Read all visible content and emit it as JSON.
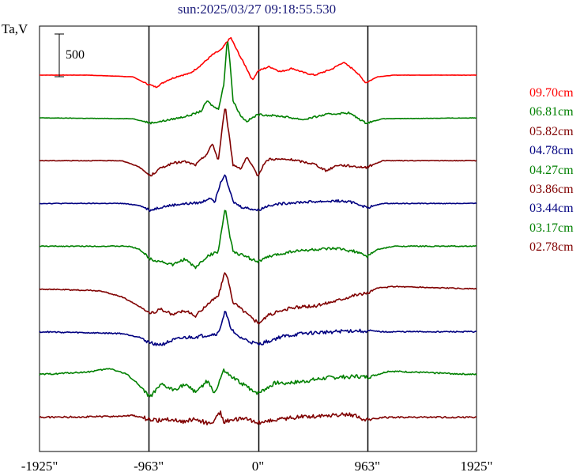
{
  "chart_data": {
    "type": "line",
    "title": "sun:2025/03/27 09:18:55.530",
    "ylabel": "Ta,V",
    "scale_bar_label": "500",
    "xlim": [
      -1925,
      1925
    ],
    "x_ticks": [
      {
        "value": -1925,
        "label": "-1925\""
      },
      {
        "value": -963,
        "label": "-963\""
      },
      {
        "value": 0,
        "label": "0\""
      },
      {
        "value": 963,
        "label": "963\""
      },
      {
        "value": 1925,
        "label": "1925\""
      }
    ],
    "vertical_lines": [
      -963,
      0,
      963
    ],
    "grid": false,
    "series": [
      {
        "name": "09.70cm",
        "color": "#ff0000",
        "baseline": 0,
        "points": [
          [
            -1925,
            0
          ],
          [
            -1500,
            0
          ],
          [
            -1100,
            -20
          ],
          [
            -1000,
            -90
          ],
          [
            -900,
            -140
          ],
          [
            -800,
            -60
          ],
          [
            -700,
            -10
          ],
          [
            -600,
            20
          ],
          [
            -500,
            120
          ],
          [
            -400,
            240
          ],
          [
            -320,
            300
          ],
          [
            -280,
            380
          ],
          [
            -240,
            440
          ],
          [
            -200,
            330
          ],
          [
            -150,
            200
          ],
          [
            -100,
            80
          ],
          [
            -50,
            -60
          ],
          [
            0,
            50
          ],
          [
            100,
            100
          ],
          [
            200,
            40
          ],
          [
            300,
            80
          ],
          [
            400,
            30
          ],
          [
            500,
            0
          ],
          [
            650,
            70
          ],
          [
            750,
            150
          ],
          [
            850,
            60
          ],
          [
            950,
            -90
          ],
          [
            1050,
            -20
          ],
          [
            1200,
            0
          ],
          [
            1925,
            0
          ]
        ]
      },
      {
        "name": "06.81cm",
        "color": "#008000",
        "baseline": 0,
        "points": [
          [
            -1925,
            0
          ],
          [
            -1100,
            -10
          ],
          [
            -950,
            -60
          ],
          [
            -850,
            -40
          ],
          [
            -700,
            0
          ],
          [
            -600,
            30
          ],
          [
            -500,
            80
          ],
          [
            -450,
            200
          ],
          [
            -400,
            140
          ],
          [
            -350,
            100
          ],
          [
            -300,
            400
          ],
          [
            -270,
            950
          ],
          [
            -250,
            700
          ],
          [
            -220,
            200
          ],
          [
            -150,
            20
          ],
          [
            -100,
            -40
          ],
          [
            0,
            40
          ],
          [
            200,
            20
          ],
          [
            400,
            -20
          ],
          [
            600,
            40
          ],
          [
            800,
            60
          ],
          [
            950,
            -60
          ],
          [
            1100,
            -10
          ],
          [
            1925,
            0
          ]
        ]
      },
      {
        "name": "05.82cm",
        "color": "#800000",
        "baseline": 0,
        "points": [
          [
            -1925,
            0
          ],
          [
            -1200,
            0
          ],
          [
            -1050,
            -70
          ],
          [
            -950,
            -180
          ],
          [
            -850,
            -80
          ],
          [
            -750,
            -30
          ],
          [
            -650,
            -10
          ],
          [
            -550,
            -50
          ],
          [
            -450,
            80
          ],
          [
            -400,
            200
          ],
          [
            -350,
            0
          ],
          [
            -290,
            650
          ],
          [
            -260,
            350
          ],
          [
            -220,
            -50
          ],
          [
            -150,
            -90
          ],
          [
            -100,
            40
          ],
          [
            0,
            -180
          ],
          [
            50,
            -40
          ],
          [
            100,
            20
          ],
          [
            300,
            10
          ],
          [
            500,
            -40
          ],
          [
            600,
            -120
          ],
          [
            700,
            -50
          ],
          [
            800,
            -60
          ],
          [
            950,
            -80
          ],
          [
            1100,
            0
          ],
          [
            1925,
            0
          ]
        ]
      },
      {
        "name": "04.78cm",
        "color": "#000080",
        "baseline": 0,
        "points": [
          [
            -1925,
            0
          ],
          [
            -1200,
            0
          ],
          [
            -1050,
            -20
          ],
          [
            -950,
            -80
          ],
          [
            -850,
            -40
          ],
          [
            -700,
            -10
          ],
          [
            -500,
            10
          ],
          [
            -420,
            70
          ],
          [
            -380,
            20
          ],
          [
            -330,
            250
          ],
          [
            -290,
            350
          ],
          [
            -260,
            200
          ],
          [
            -220,
            20
          ],
          [
            -150,
            -40
          ],
          [
            0,
            -80
          ],
          [
            100,
            -20
          ],
          [
            300,
            10
          ],
          [
            500,
            20
          ],
          [
            700,
            30
          ],
          [
            850,
            10
          ],
          [
            960,
            -50
          ],
          [
            1100,
            0
          ],
          [
            1925,
            0
          ]
        ]
      },
      {
        "name": "04.27cm",
        "color": "#008000",
        "baseline": 0,
        "points": [
          [
            -1925,
            0
          ],
          [
            -1150,
            0
          ],
          [
            -1050,
            -30
          ],
          [
            -950,
            -150
          ],
          [
            -850,
            -180
          ],
          [
            -750,
            -220
          ],
          [
            -650,
            -150
          ],
          [
            -550,
            -250
          ],
          [
            -450,
            -120
          ],
          [
            -350,
            -60
          ],
          [
            -290,
            450
          ],
          [
            -260,
            200
          ],
          [
            -220,
            -60
          ],
          [
            -150,
            -100
          ],
          [
            0,
            -180
          ],
          [
            100,
            -120
          ],
          [
            300,
            -60
          ],
          [
            500,
            -40
          ],
          [
            700,
            -30
          ],
          [
            850,
            -60
          ],
          [
            960,
            -120
          ],
          [
            1050,
            -40
          ],
          [
            1200,
            0
          ],
          [
            1925,
            0
          ]
        ]
      },
      {
        "name": "03.86cm",
        "color": "#800000",
        "baseline": 0,
        "points": [
          [
            -1925,
            0
          ],
          [
            -1400,
            -20
          ],
          [
            -1200,
            -90
          ],
          [
            -1050,
            -200
          ],
          [
            -950,
            -280
          ],
          [
            -850,
            -240
          ],
          [
            -750,
            -300
          ],
          [
            -650,
            -250
          ],
          [
            -550,
            -320
          ],
          [
            -450,
            -180
          ],
          [
            -350,
            -80
          ],
          [
            -290,
            200
          ],
          [
            -260,
            80
          ],
          [
            -220,
            -150
          ],
          [
            0,
            -400
          ],
          [
            100,
            -300
          ],
          [
            300,
            -220
          ],
          [
            500,
            -200
          ],
          [
            700,
            -130
          ],
          [
            850,
            -70
          ],
          [
            960,
            -50
          ],
          [
            1050,
            10
          ],
          [
            1200,
            30
          ],
          [
            1925,
            0
          ]
        ]
      },
      {
        "name": "03.44cm",
        "color": "#000080",
        "baseline": 0,
        "points": [
          [
            -1925,
            0
          ],
          [
            -1200,
            -20
          ],
          [
            -1050,
            -60
          ],
          [
            -950,
            -130
          ],
          [
            -850,
            -150
          ],
          [
            -750,
            -100
          ],
          [
            -650,
            -70
          ],
          [
            -550,
            -60
          ],
          [
            -450,
            -40
          ],
          [
            -350,
            -20
          ],
          [
            -290,
            240
          ],
          [
            -250,
            80
          ],
          [
            -200,
            -40
          ],
          [
            -100,
            -100
          ],
          [
            0,
            -150
          ],
          [
            200,
            -60
          ],
          [
            400,
            -20
          ],
          [
            600,
            -5
          ],
          [
            800,
            10
          ],
          [
            960,
            10
          ],
          [
            1100,
            0
          ],
          [
            1925,
            0
          ]
        ]
      },
      {
        "name": "03.17cm",
        "color": "#008000",
        "baseline": 0,
        "points": [
          [
            -1925,
            0
          ],
          [
            -1500,
            30
          ],
          [
            -1300,
            70
          ],
          [
            -1150,
            0
          ],
          [
            -1050,
            -120
          ],
          [
            -950,
            -260
          ],
          [
            -850,
            -120
          ],
          [
            -750,
            -180
          ],
          [
            -650,
            -120
          ],
          [
            -550,
            -200
          ],
          [
            -450,
            -80
          ],
          [
            -380,
            -220
          ],
          [
            -300,
            60
          ],
          [
            -250,
            -20
          ],
          [
            -150,
            -100
          ],
          [
            -50,
            -180
          ],
          [
            0,
            -220
          ],
          [
            150,
            -100
          ],
          [
            350,
            -90
          ],
          [
            600,
            -40
          ],
          [
            850,
            -20
          ],
          [
            960,
            -30
          ],
          [
            1050,
            0
          ],
          [
            1150,
            40
          ],
          [
            1925,
            0
          ]
        ]
      },
      {
        "name": "02.78cm",
        "color": "#800000",
        "baseline": 0,
        "points": [
          [
            -1925,
            0
          ],
          [
            -1300,
            10
          ],
          [
            -1100,
            20
          ],
          [
            -1000,
            -10
          ],
          [
            -900,
            -40
          ],
          [
            -800,
            -20
          ],
          [
            -650,
            -50
          ],
          [
            -550,
            -20
          ],
          [
            -420,
            -80
          ],
          [
            -330,
            60
          ],
          [
            -300,
            -60
          ],
          [
            -250,
            -30
          ],
          [
            -100,
            -20
          ],
          [
            0,
            -60
          ],
          [
            200,
            -20
          ],
          [
            400,
            10
          ],
          [
            600,
            20
          ],
          [
            800,
            40
          ],
          [
            960,
            -30
          ],
          [
            1100,
            0
          ],
          [
            1925,
            0
          ]
        ]
      }
    ]
  }
}
